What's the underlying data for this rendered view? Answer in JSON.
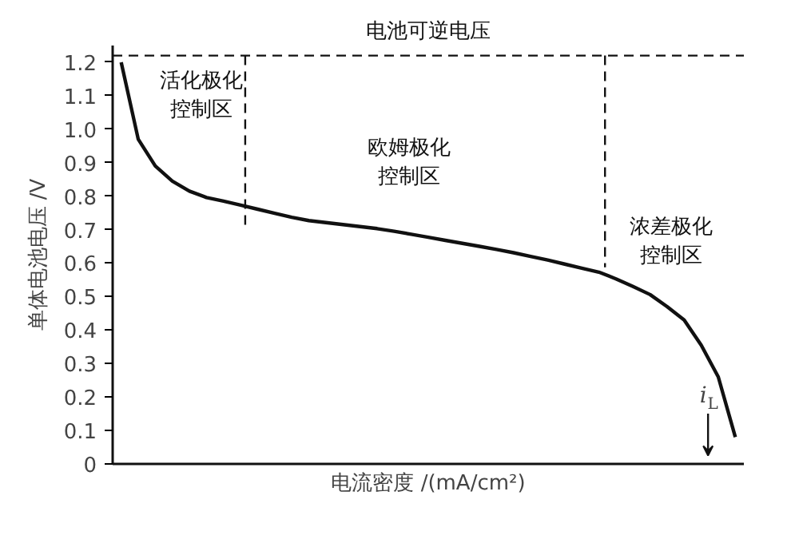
{
  "chart_data": {
    "type": "line",
    "xlabel": "电流密度 /(mA/cm²)",
    "ylabel": "单体电池电压 /V",
    "categories": [
      null,
      null,
      null,
      null,
      null,
      null,
      null,
      null,
      null,
      null,
      null,
      null,
      null,
      null,
      null,
      null,
      null,
      null,
      null,
      null,
      null,
      null,
      null,
      null,
      null,
      null,
      null,
      null,
      null,
      null,
      null,
      null,
      null,
      null,
      null,
      null,
      null
    ],
    "ylim": [
      0,
      1.25
    ],
    "yticks": [
      0,
      0.1,
      0.2,
      0.3,
      0.4,
      0.5,
      0.6,
      0.7,
      0.8,
      0.9,
      {
        "value": 1,
        "label": "1.0"
      },
      1.1,
      1.2
    ],
    "grid": false,
    "line_style": "solid",
    "series": [
      {
        "color": "#111111",
        "values": [
          1.2,
          0.97,
          0.89,
          0.845,
          0.815,
          0.796,
          0.785,
          0.773,
          0.761,
          0.749,
          0.737,
          0.727,
          0.721,
          0.715,
          0.709,
          0.703,
          0.695,
          0.686,
          0.677,
          0.668,
          0.659,
          0.65,
          0.641,
          0.631,
          0.62,
          0.609,
          0.597,
          0.585,
          0.573,
          0.553,
          0.53,
          0.506,
          0.47,
          0.43,
          0.355,
          0.26,
          0.08
        ]
      }
    ],
    "ref_lines": [
      {
        "axis": "y",
        "value": 1.22,
        "label": "电池可逆电压",
        "color": "#111111",
        "line_style": "dashed"
      }
    ],
    "annotations": [
      "活化极化控制区",
      "欧姆极化控制区",
      "浓差极化控制区",
      "i$_{L}$"
    ]
  }
}
